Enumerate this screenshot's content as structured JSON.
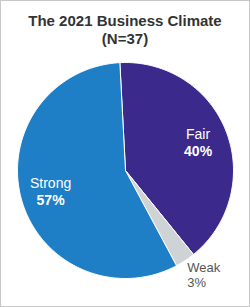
{
  "chart_data": {
    "type": "pie",
    "title": "The 2021 Business Climate",
    "subtitle": "(N=37)",
    "categories": [
      "Fair",
      "Weak",
      "Strong"
    ],
    "values": [
      40,
      3,
      57
    ],
    "value_labels": [
      "40%",
      "3%",
      "57%"
    ],
    "colors": [
      "#3b2a8c",
      "#d0d3d6",
      "#1f7fc6"
    ],
    "data_labels": true
  }
}
